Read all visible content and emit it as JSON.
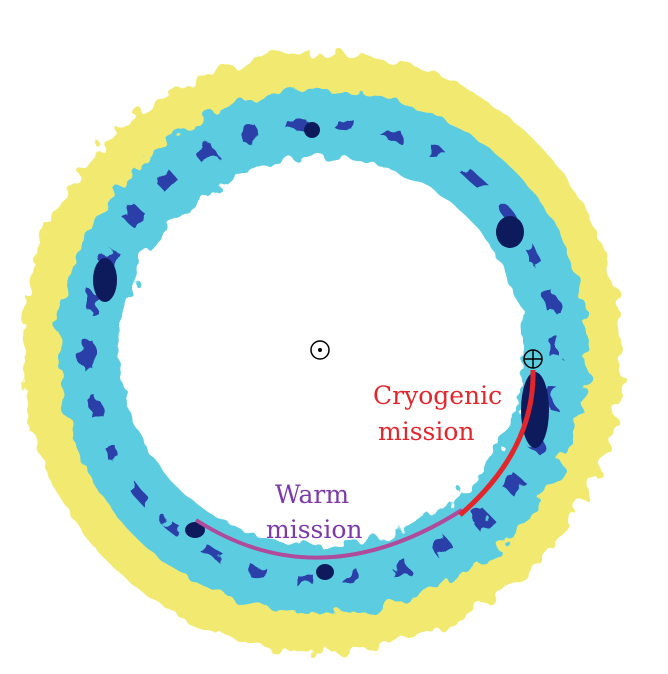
{
  "labels": {
    "cryogenic": [
      "Cryogenic",
      "mission"
    ],
    "warm": [
      "Warm",
      "mission"
    ]
  }
}
